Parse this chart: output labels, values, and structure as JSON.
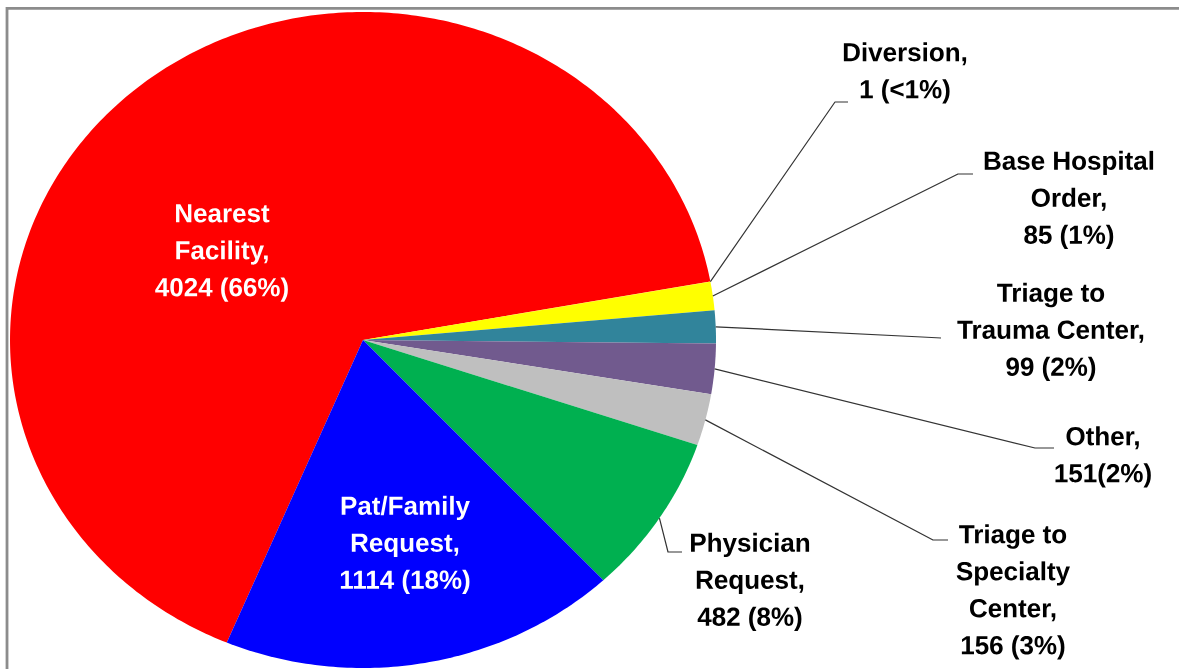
{
  "chart_data": {
    "type": "pie",
    "categories": [
      "Nearest Facility, 4024 (66%)",
      "Diversion, 1 (<1%)",
      "Base Hospital Order, 85 (1%)",
      "Triage to Trauma Center, 99 (2%)",
      "Other, 151(2%)",
      "Triage to Specialty Center, 156 (3%)",
      "Physician Request, 482 (8%)",
      "Pat/Family Request, 1114 (18%)"
    ],
    "values": [
      4024,
      1,
      85,
      99,
      151,
      156,
      482,
      1114
    ],
    "colors": [
      "#ff0000",
      "#ffc000",
      "#ffff00",
      "#31849b",
      "#715a8e",
      "#bfbfbf",
      "#00b050",
      "#0000ff"
    ]
  }
}
